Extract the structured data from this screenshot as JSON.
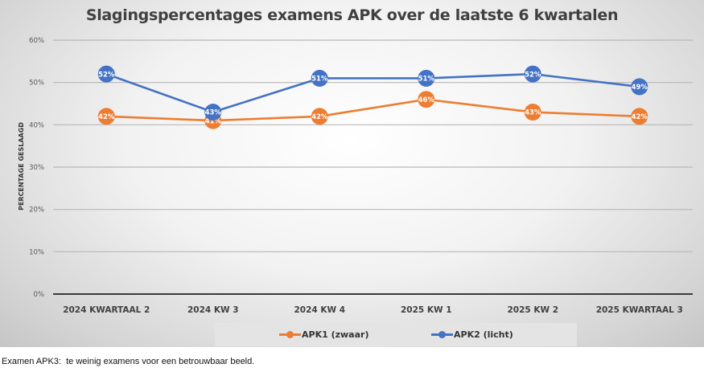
{
  "chart_data": {
    "type": "line",
    "title": "Slagingspercentages examens APK over de laatste 6 kwartalen",
    "xlabel": "",
    "ylabel": "PERCENTAGE GESLAAGD",
    "ylim": [
      0,
      60
    ],
    "yticks": [
      "0%",
      "10%",
      "20%",
      "30%",
      "40%",
      "50%",
      "60%"
    ],
    "ytick_values": [
      0,
      10,
      20,
      30,
      40,
      50,
      60
    ],
    "grid": true,
    "legend_position": "bottom",
    "categories": [
      "2024 KWARTAAL 2",
      "2024 KW 3",
      "2024 KW 4",
      "2025 KW 1",
      "2025 KW 2",
      "2025 KWARTAAL 3"
    ],
    "series": [
      {
        "name": "APK1 (zwaar)",
        "color": "#ED7D31",
        "values": [
          42,
          41,
          42,
          46,
          43,
          42
        ],
        "labels": [
          "42%",
          "41%",
          "42%",
          "46%",
          "43%",
          "42%"
        ]
      },
      {
        "name": "APK2 (licht)",
        "color": "#4472C4",
        "values": [
          52,
          43,
          51,
          51,
          52,
          49
        ],
        "labels": [
          "52%",
          "43%",
          "51%",
          "51%",
          "52%",
          "49%"
        ]
      }
    ]
  },
  "footnote": "Examen APK3:  te weinig examens voor een betrouwbaar beeld."
}
